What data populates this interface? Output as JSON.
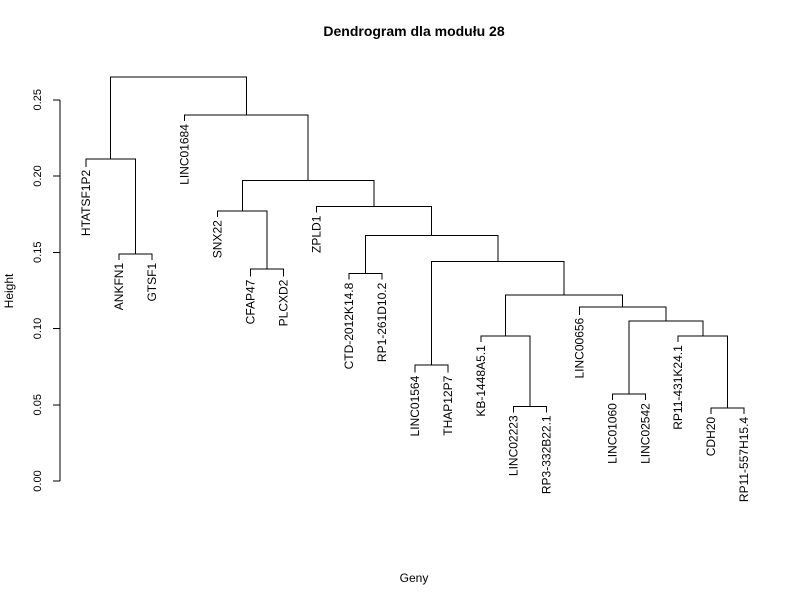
{
  "chart_data": {
    "type": "dendrogram",
    "title": "Dendrogram dla modułu 28",
    "xlabel": "Geny",
    "ylabel": "Height",
    "ylim": [
      0,
      0.27
    ],
    "yticks": [
      0.0,
      0.05,
      0.1,
      0.15,
      0.2,
      0.25
    ],
    "ytick_labels": [
      "0.00",
      "0.05",
      "0.10",
      "0.15",
      "0.20",
      "0.25"
    ],
    "leaves": [
      "HTATSF1P2",
      "ANKFN1",
      "GTSF1",
      "LINC01684",
      "SNX22",
      "CFAP47",
      "PLCXD2",
      "ZPLD1",
      "CTD-2012K14.8",
      "RP1-261D10.2",
      "LINC01564",
      "THAP12P7",
      "KB-1448A5.1",
      "LINC02223",
      "RP3-332B22.1",
      "LINC00656",
      "LINC01060",
      "LINC02542",
      "RP11-431K24.1",
      "CDH20",
      "RP11-557H15.4"
    ],
    "merges": [
      {
        "id": "m_ankfn_gtsf",
        "left": "ANKFN1",
        "right": "GTSF1",
        "height": 0.149
      },
      {
        "id": "m_htatsf",
        "left": "HTATSF1P2",
        "right": "m_ankfn_gtsf",
        "height": 0.211
      },
      {
        "id": "m_cfap_plcxd",
        "left": "CFAP47",
        "right": "PLCXD2",
        "height": 0.139
      },
      {
        "id": "m_snx",
        "left": "SNX22",
        "right": "m_cfap_plcxd",
        "height": 0.177
      },
      {
        "id": "m_ctd_rp1",
        "left": "CTD-2012K14.8",
        "right": "RP1-261D10.2",
        "height": 0.136
      },
      {
        "id": "m_linc1564_thap",
        "left": "LINC01564",
        "right": "THAP12P7",
        "height": 0.076
      },
      {
        "id": "m_linc2223_rp3",
        "left": "LINC02223",
        "right": "RP3-332B22.1",
        "height": 0.049
      },
      {
        "id": "m_kb",
        "left": "KB-1448A5.1",
        "right": "m_linc2223_rp3",
        "height": 0.095
      },
      {
        "id": "m_linc1060_2542",
        "left": "LINC01060",
        "right": "LINC02542",
        "height": 0.057
      },
      {
        "id": "m_cdh_rp11557",
        "left": "CDH20",
        "right": "RP11-557H15.4",
        "height": 0.048
      },
      {
        "id": "m_rp11431",
        "left": "RP11-431K24.1",
        "right": "m_cdh_rp11557",
        "height": 0.095
      },
      {
        "id": "m_right4",
        "left": "m_linc1060_2542",
        "right": "m_rp11431",
        "height": 0.105
      },
      {
        "id": "m_linc656",
        "left": "LINC00656",
        "right": "m_right4",
        "height": 0.114
      },
      {
        "id": "m_kb_656",
        "left": "m_kb",
        "right": "m_linc656",
        "height": 0.122
      },
      {
        "id": "m_big",
        "left": "m_linc1564_thap",
        "right": "m_kb_656",
        "height": 0.144
      },
      {
        "id": "m_ctd_big",
        "left": "m_ctd_rp1",
        "right": "m_big",
        "height": 0.161
      },
      {
        "id": "m_zpld",
        "left": "ZPLD1",
        "right": "m_ctd_big",
        "height": 0.18
      },
      {
        "id": "m_snx_zpld",
        "left": "m_snx",
        "right": "m_zpld",
        "height": 0.197
      },
      {
        "id": "m_linc1684",
        "left": "LINC01684",
        "right": "m_snx_zpld",
        "height": 0.24
      },
      {
        "id": "m_root",
        "left": "m_htatsf",
        "right": "m_linc1684",
        "height": 0.265
      }
    ],
    "leaf_label_height": {
      "HTATSF1P2": 0.206,
      "ANKFN1": 0.145,
      "GTSF1": 0.145,
      "LINC01684": 0.236,
      "SNX22": 0.173,
      "CFAP47": 0.134,
      "PLCXD2": 0.134,
      "ZPLD1": 0.176,
      "CTD-2012K14.8": 0.132,
      "RP1-261D10.2": 0.132,
      "LINC01564": 0.071,
      "THAP12P7": 0.071,
      "KB-1448A5.1": 0.091,
      "LINC02223": 0.045,
      "RP3-332B22.1": 0.045,
      "LINC00656": 0.109,
      "LINC01060": 0.053,
      "LINC02542": 0.053,
      "RP11-431K24.1": 0.091,
      "CDH20": 0.044,
      "RP11-557H15.4": 0.044
    }
  }
}
